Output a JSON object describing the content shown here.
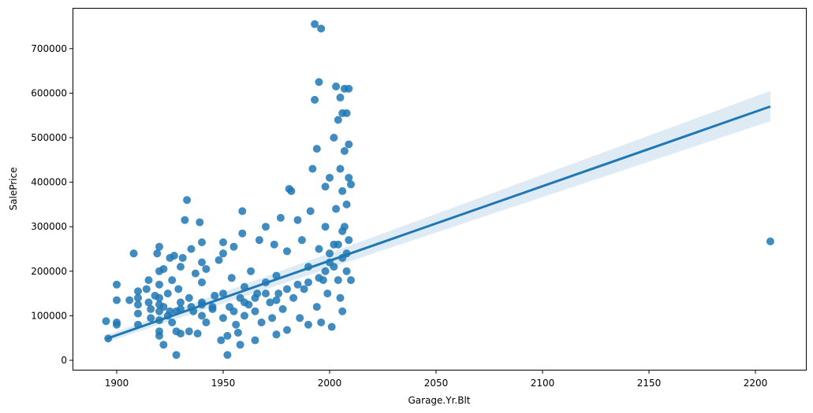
{
  "chart_data": {
    "type": "scatter",
    "title": "",
    "xlabel": "Garage.Yr.Blt",
    "ylabel": "SalePrice",
    "xlim": [
      1880,
      2215
    ],
    "ylim": [
      -20000,
      790000
    ],
    "xticks": [
      1900,
      1950,
      2000,
      2050,
      2100,
      2150,
      2200
    ],
    "yticks": [
      0,
      100000,
      200000,
      300000,
      400000,
      500000,
      600000,
      700000
    ],
    "grid": false,
    "color": "#1f77b4",
    "regression": {
      "x": [
        1895,
        2207
      ],
      "y": [
        48000,
        570000
      ],
      "ci_low_end": [
        40000,
        537000
      ],
      "ci_high_end": [
        56000,
        605000
      ]
    },
    "points": [
      [
        1895,
        88000
      ],
      [
        1896,
        49000
      ],
      [
        1900,
        85000
      ],
      [
        1900,
        80000
      ],
      [
        1900,
        170000
      ],
      [
        1900,
        135000
      ],
      [
        1906,
        135000
      ],
      [
        1908,
        240000
      ],
      [
        1910,
        80000
      ],
      [
        1910,
        105000
      ],
      [
        1910,
        125000
      ],
      [
        1910,
        140000
      ],
      [
        1910,
        155000
      ],
      [
        1914,
        160000
      ],
      [
        1915,
        180000
      ],
      [
        1915,
        130000
      ],
      [
        1916,
        95000
      ],
      [
        1916,
        115000
      ],
      [
        1918,
        145000
      ],
      [
        1919,
        240000
      ],
      [
        1920,
        55000
      ],
      [
        1920,
        65000
      ],
      [
        1920,
        90000
      ],
      [
        1920,
        110000
      ],
      [
        1920,
        125000
      ],
      [
        1920,
        140000
      ],
      [
        1920,
        170000
      ],
      [
        1920,
        200000
      ],
      [
        1920,
        255000
      ],
      [
        1922,
        35000
      ],
      [
        1922,
        120000
      ],
      [
        1922,
        205000
      ],
      [
        1924,
        100000
      ],
      [
        1924,
        150000
      ],
      [
        1925,
        230000
      ],
      [
        1926,
        85000
      ],
      [
        1926,
        180000
      ],
      [
        1927,
        235000
      ],
      [
        1928,
        12000
      ],
      [
        1928,
        65000
      ],
      [
        1928,
        110000
      ],
      [
        1929,
        160000
      ],
      [
        1930,
        60000
      ],
      [
        1930,
        130000
      ],
      [
        1930,
        210000
      ],
      [
        1931,
        230000
      ],
      [
        1932,
        315000
      ],
      [
        1933,
        360000
      ],
      [
        1934,
        65000
      ],
      [
        1934,
        140000
      ],
      [
        1935,
        250000
      ],
      [
        1936,
        110000
      ],
      [
        1937,
        195000
      ],
      [
        1938,
        60000
      ],
      [
        1939,
        310000
      ],
      [
        1940,
        100000
      ],
      [
        1940,
        130000
      ],
      [
        1940,
        175000
      ],
      [
        1940,
        220000
      ],
      [
        1940,
        265000
      ],
      [
        1942,
        85000
      ],
      [
        1942,
        205000
      ],
      [
        1945,
        115000
      ],
      [
        1946,
        145000
      ],
      [
        1948,
        225000
      ],
      [
        1949,
        45000
      ],
      [
        1950,
        95000
      ],
      [
        1950,
        150000
      ],
      [
        1950,
        240000
      ],
      [
        1950,
        265000
      ],
      [
        1952,
        12000
      ],
      [
        1952,
        55000
      ],
      [
        1953,
        120000
      ],
      [
        1954,
        185000
      ],
      [
        1955,
        255000
      ],
      [
        1956,
        80000
      ],
      [
        1957,
        62000
      ],
      [
        1958,
        35000
      ],
      [
        1958,
        140000
      ],
      [
        1959,
        285000
      ],
      [
        1959,
        335000
      ],
      [
        1960,
        100000
      ],
      [
        1960,
        165000
      ],
      [
        1962,
        125000
      ],
      [
        1963,
        200000
      ],
      [
        1965,
        45000
      ],
      [
        1965,
        110000
      ],
      [
        1966,
        150000
      ],
      [
        1967,
        270000
      ],
      [
        1968,
        85000
      ],
      [
        1970,
        175000
      ],
      [
        1970,
        300000
      ],
      [
        1972,
        130000
      ],
      [
        1973,
        95000
      ],
      [
        1974,
        260000
      ],
      [
        1975,
        58000
      ],
      [
        1975,
        190000
      ],
      [
        1976,
        150000
      ],
      [
        1977,
        320000
      ],
      [
        1978,
        115000
      ],
      [
        1980,
        68000
      ],
      [
        1980,
        245000
      ],
      [
        1981,
        385000
      ],
      [
        1982,
        380000
      ],
      [
        1983,
        140000
      ],
      [
        1985,
        315000
      ],
      [
        1986,
        95000
      ],
      [
        1987,
        270000
      ],
      [
        1988,
        160000
      ],
      [
        1990,
        80000
      ],
      [
        1990,
        210000
      ],
      [
        1991,
        335000
      ],
      [
        1992,
        430000
      ],
      [
        1993,
        585000
      ],
      [
        1993,
        755000
      ],
      [
        1994,
        475000
      ],
      [
        1994,
        120000
      ],
      [
        1995,
        250000
      ],
      [
        1995,
        625000
      ],
      [
        1996,
        745000
      ],
      [
        1996,
        85000
      ],
      [
        1997,
        180000
      ],
      [
        1998,
        390000
      ],
      [
        1998,
        300000
      ],
      [
        1999,
        150000
      ],
      [
        2000,
        220000
      ],
      [
        2000,
        410000
      ],
      [
        2001,
        75000
      ],
      [
        2002,
        500000
      ],
      [
        2002,
        260000
      ],
      [
        2003,
        615000
      ],
      [
        2003,
        340000
      ],
      [
        2004,
        540000
      ],
      [
        2004,
        180000
      ],
      [
        2005,
        590000
      ],
      [
        2005,
        430000
      ],
      [
        2005,
        140000
      ],
      [
        2006,
        555000
      ],
      [
        2006,
        380000
      ],
      [
        2006,
        230000
      ],
      [
        2006,
        110000
      ],
      [
        2007,
        610000
      ],
      [
        2007,
        470000
      ],
      [
        2007,
        300000
      ],
      [
        2008,
        555000
      ],
      [
        2008,
        200000
      ],
      [
        2008,
        350000
      ],
      [
        2009,
        610000
      ],
      [
        2009,
        485000
      ],
      [
        2009,
        410000
      ],
      [
        2009,
        270000
      ],
      [
        2010,
        395000
      ],
      [
        2010,
        180000
      ],
      [
        1955,
        110000
      ],
      [
        1960,
        130000
      ],
      [
        1965,
        140000
      ],
      [
        1970,
        150000
      ],
      [
        1975,
        135000
      ],
      [
        1980,
        160000
      ],
      [
        1985,
        170000
      ],
      [
        1990,
        175000
      ],
      [
        1995,
        185000
      ],
      [
        1998,
        200000
      ],
      [
        2000,
        240000
      ],
      [
        2002,
        210000
      ],
      [
        2004,
        260000
      ],
      [
        2006,
        290000
      ],
      [
        2008,
        240000
      ],
      [
        1945,
        120000
      ],
      [
        1940,
        125000
      ],
      [
        1935,
        120000
      ],
      [
        1930,
        115000
      ],
      [
        1925,
        110000
      ],
      [
        2207,
        267000
      ]
    ]
  }
}
